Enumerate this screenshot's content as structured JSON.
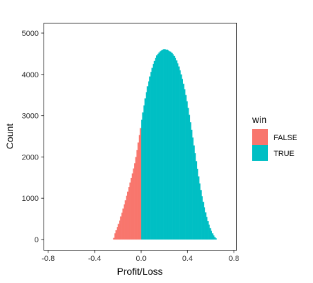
{
  "chart_data": {
    "type": "bar",
    "xlabel": "Profit/Loss",
    "ylabel": "Count",
    "xlim": [
      -0.84,
      0.82
    ],
    "ylim": [
      -250,
      5250
    ],
    "x_ticks": [
      -0.8,
      -0.4,
      0.0,
      0.4,
      0.8
    ],
    "x_tick_labels": [
      "-0.8",
      "-0.4",
      "0.0",
      "0.4",
      "0.8"
    ],
    "y_ticks": [
      0,
      1000,
      2000,
      3000,
      4000,
      5000
    ],
    "y_tick_labels": [
      "0",
      "1000",
      "2000",
      "3000",
      "4000",
      "5000"
    ],
    "grid": false,
    "legend": {
      "title": "win",
      "position": "right",
      "entries": [
        {
          "label": "FALSE",
          "color": "#F8766D"
        },
        {
          "label": "TRUE",
          "color": "#00BFC4"
        }
      ]
    },
    "bin_width": 0.01,
    "series": [
      {
        "name": "FALSE",
        "color": "#F8766D",
        "bins": [
          [
            -0.24,
            40
          ],
          [
            -0.23,
            150
          ],
          [
            -0.22,
            230
          ],
          [
            -0.21,
            300
          ],
          [
            -0.2,
            380
          ],
          [
            -0.19,
            460
          ],
          [
            -0.18,
            560
          ],
          [
            -0.17,
            650
          ],
          [
            -0.16,
            750
          ],
          [
            -0.15,
            850
          ],
          [
            -0.14,
            950
          ],
          [
            -0.13,
            1060
          ],
          [
            -0.12,
            1160
          ],
          [
            -0.11,
            1270
          ],
          [
            -0.1,
            1380
          ],
          [
            -0.09,
            1490
          ],
          [
            -0.08,
            1600
          ],
          [
            -0.07,
            1720
          ],
          [
            -0.06,
            1850
          ],
          [
            -0.05,
            2000
          ],
          [
            -0.04,
            2170
          ],
          [
            -0.03,
            2350
          ],
          [
            -0.02,
            2530
          ],
          [
            -0.01,
            2700
          ]
        ]
      },
      {
        "name": "TRUE",
        "color": "#00BFC4",
        "bins": [
          [
            0.0,
            2900
          ],
          [
            0.01,
            3080
          ],
          [
            0.02,
            3250
          ],
          [
            0.03,
            3420
          ],
          [
            0.04,
            3570
          ],
          [
            0.05,
            3710
          ],
          [
            0.06,
            3830
          ],
          [
            0.07,
            3950
          ],
          [
            0.08,
            4060
          ],
          [
            0.09,
            4160
          ],
          [
            0.1,
            4250
          ],
          [
            0.11,
            4330
          ],
          [
            0.12,
            4400
          ],
          [
            0.13,
            4460
          ],
          [
            0.14,
            4500
          ],
          [
            0.15,
            4530
          ],
          [
            0.16,
            4560
          ],
          [
            0.17,
            4580
          ],
          [
            0.18,
            4600
          ],
          [
            0.19,
            4610
          ],
          [
            0.2,
            4610
          ],
          [
            0.21,
            4600
          ],
          [
            0.22,
            4600
          ],
          [
            0.23,
            4580
          ],
          [
            0.24,
            4560
          ],
          [
            0.25,
            4550
          ],
          [
            0.26,
            4520
          ],
          [
            0.27,
            4490
          ],
          [
            0.28,
            4450
          ],
          [
            0.29,
            4400
          ],
          [
            0.3,
            4340
          ],
          [
            0.31,
            4270
          ],
          [
            0.32,
            4190
          ],
          [
            0.33,
            4100
          ],
          [
            0.34,
            4000
          ],
          [
            0.35,
            3890
          ],
          [
            0.36,
            3770
          ],
          [
            0.37,
            3640
          ],
          [
            0.38,
            3500
          ],
          [
            0.39,
            3350
          ],
          [
            0.4,
            3190
          ],
          [
            0.41,
            3020
          ],
          [
            0.42,
            2840
          ],
          [
            0.43,
            2660
          ],
          [
            0.44,
            2470
          ],
          [
            0.45,
            2280
          ],
          [
            0.46,
            2090
          ],
          [
            0.47,
            1900
          ],
          [
            0.48,
            1710
          ],
          [
            0.49,
            1530
          ],
          [
            0.5,
            1360
          ],
          [
            0.51,
            1200
          ],
          [
            0.52,
            1050
          ],
          [
            0.53,
            910
          ],
          [
            0.54,
            780
          ],
          [
            0.55,
            660
          ],
          [
            0.56,
            550
          ],
          [
            0.57,
            450
          ],
          [
            0.58,
            360
          ],
          [
            0.59,
            280
          ],
          [
            0.6,
            210
          ],
          [
            0.61,
            150
          ],
          [
            0.62,
            100
          ],
          [
            0.63,
            60
          ],
          [
            0.64,
            30
          ]
        ]
      }
    ]
  }
}
